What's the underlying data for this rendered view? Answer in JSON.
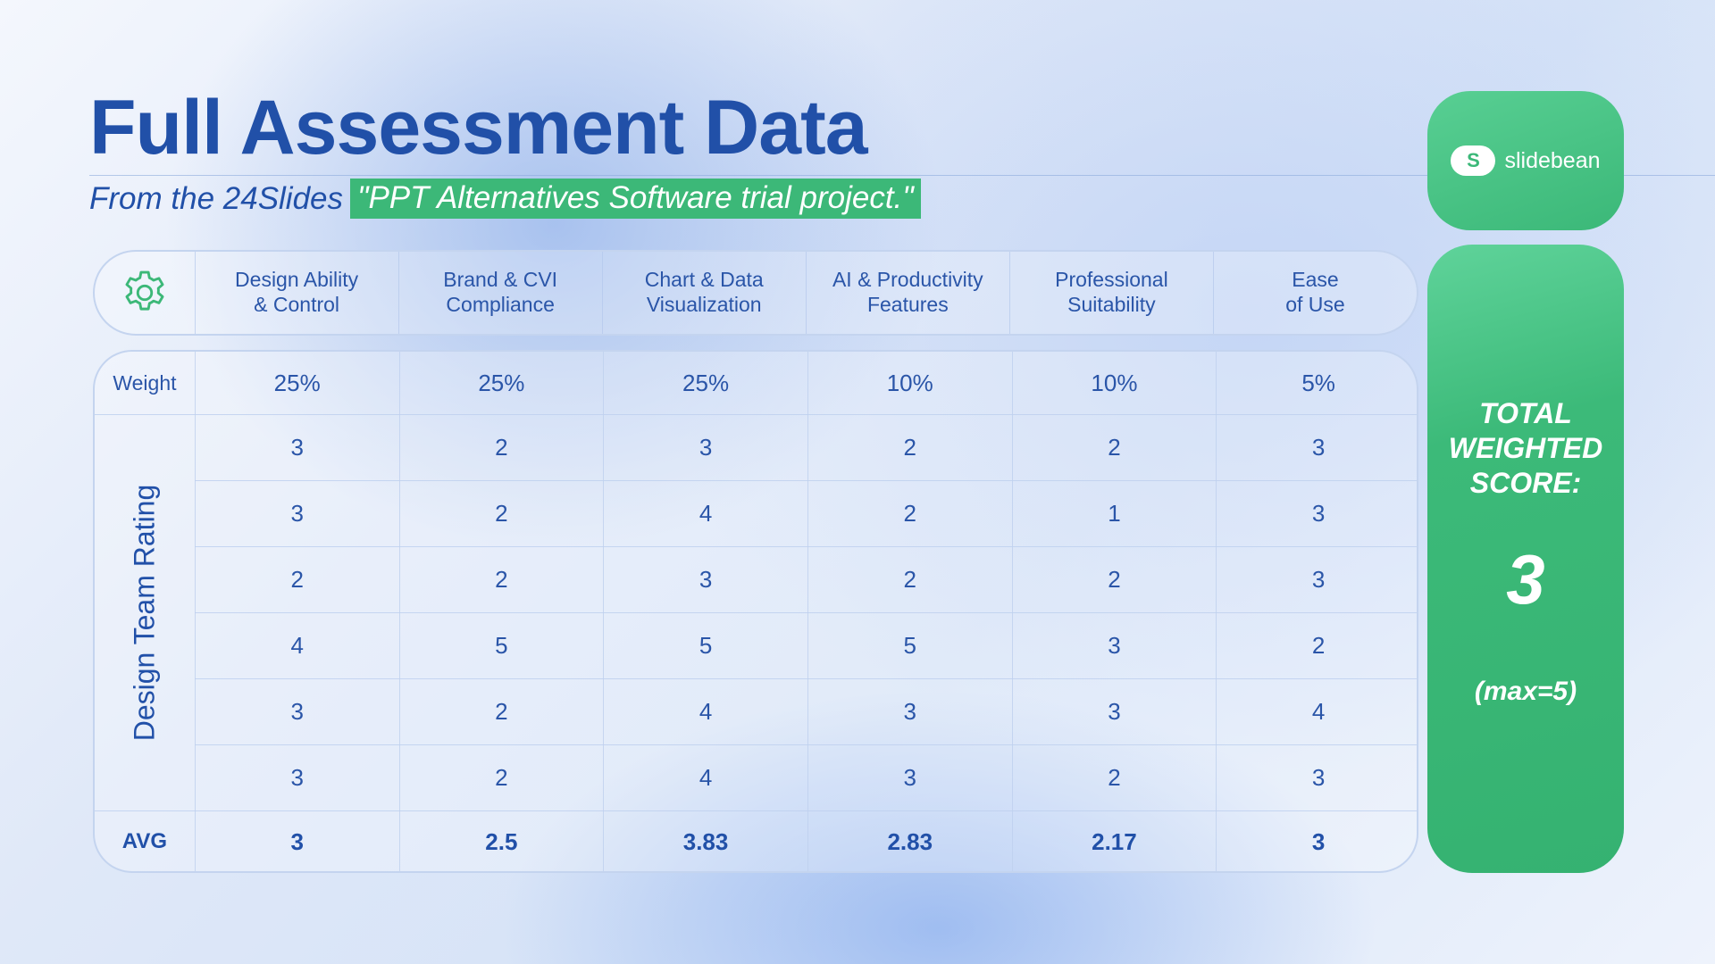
{
  "title": "Full Assessment Data",
  "subtitle": {
    "prefix": "From the 24Slides",
    "highlight": "\"PPT Alternatives Software trial project.\""
  },
  "header": {
    "icon": "gear-icon",
    "columns": [
      "Design Ability\n& Control",
      "Brand & CVI\nCompliance",
      "Chart & Data\nVisualization",
      "AI & Productivity\nFeatures",
      "Professional\nSuitability",
      "Ease\nof Use"
    ]
  },
  "table": {
    "weight_label": "Weight",
    "weights": [
      "25%",
      "25%",
      "25%",
      "10%",
      "10%",
      "5%"
    ],
    "side_label": "Design Team Rating",
    "ratings": [
      [
        "3",
        "2",
        "3",
        "2",
        "2",
        "3"
      ],
      [
        "3",
        "2",
        "4",
        "2",
        "1",
        "3"
      ],
      [
        "2",
        "2",
        "3",
        "2",
        "2",
        "3"
      ],
      [
        "4",
        "5",
        "5",
        "5",
        "3",
        "2"
      ],
      [
        "3",
        "2",
        "4",
        "3",
        "3",
        "4"
      ],
      [
        "3",
        "2",
        "4",
        "3",
        "2",
        "3"
      ]
    ],
    "avg_label": "AVG",
    "averages": [
      "3",
      "2.5",
      "3.83",
      "2.83",
      "2.17",
      "3"
    ]
  },
  "brand": {
    "logo_letter": "S",
    "name": "slidebean"
  },
  "score": {
    "title": "TOTAL\nWEIGHTED\nSCORE:",
    "value": "3",
    "max": "(max=5)"
  },
  "colors": {
    "primary_blue": "#2150a8",
    "accent_green": "#3cb878"
  }
}
